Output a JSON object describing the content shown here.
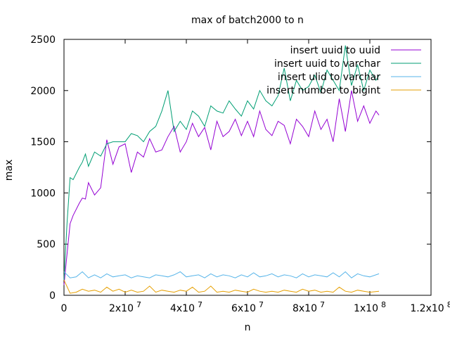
{
  "chart_data": {
    "type": "line",
    "title": "max of batch2000 to n",
    "xlabel": "n",
    "ylabel": "max",
    "xlim": [
      0,
      120000000
    ],
    "ylim": [
      0,
      2500
    ],
    "x_ticks": [
      {
        "value": 0,
        "label": "0"
      },
      {
        "value": 20000000,
        "label": "2x10",
        "exp": "7"
      },
      {
        "value": 40000000,
        "label": "4x10",
        "exp": "7"
      },
      {
        "value": 60000000,
        "label": "6x10",
        "exp": "7"
      },
      {
        "value": 80000000,
        "label": "8x10",
        "exp": "7"
      },
      {
        "value": 100000000,
        "label": "1x10",
        "exp": "8"
      },
      {
        "value": 120000000,
        "label": "1.2x10",
        "exp": "8"
      }
    ],
    "y_ticks": [
      {
        "value": 0,
        "label": "0"
      },
      {
        "value": 500,
        "label": "500"
      },
      {
        "value": 1000,
        "label": "1000"
      },
      {
        "value": 1500,
        "label": "1500"
      },
      {
        "value": 2000,
        "label": "2000"
      },
      {
        "value": 2500,
        "label": "2500"
      }
    ],
    "grid": false,
    "legend_position": "top-right",
    "series": [
      {
        "name": "insert uuid to uuid",
        "color": "#9400d3",
        "x": [
          0,
          1000000,
          2000000,
          3000000,
          5000000,
          6000000,
          7000000,
          8000000,
          10000000,
          12000000,
          14000000,
          16000000,
          18000000,
          20000000,
          22000000,
          24000000,
          26000000,
          28000000,
          30000000,
          32000000,
          34000000,
          36000000,
          38000000,
          40000000,
          42000000,
          44000000,
          46000000,
          48000000,
          50000000,
          52000000,
          54000000,
          56000000,
          58000000,
          60000000,
          62000000,
          64000000,
          66000000,
          68000000,
          70000000,
          72000000,
          74000000,
          76000000,
          78000000,
          80000000,
          82000000,
          84000000,
          86000000,
          88000000,
          90000000,
          92000000,
          94000000,
          96000000,
          98000000,
          100000000,
          102000000,
          103000000
        ],
        "values": [
          100,
          400,
          700,
          780,
          900,
          950,
          940,
          1100,
          980,
          1050,
          1520,
          1280,
          1450,
          1480,
          1200,
          1400,
          1350,
          1530,
          1400,
          1420,
          1550,
          1650,
          1400,
          1500,
          1680,
          1550,
          1640,
          1420,
          1700,
          1550,
          1600,
          1720,
          1560,
          1700,
          1550,
          1800,
          1620,
          1560,
          1700,
          1660,
          1480,
          1720,
          1650,
          1550,
          1800,
          1620,
          1720,
          1500,
          1920,
          1600,
          2000,
          1700,
          1850,
          1680,
          1800,
          1760
        ]
      },
      {
        "name": "insert uuid to varchar",
        "color": "#009e73",
        "x": [
          0,
          1000000,
          2000000,
          3000000,
          5000000,
          6000000,
          7000000,
          8000000,
          10000000,
          12000000,
          14000000,
          16000000,
          18000000,
          20000000,
          22000000,
          24000000,
          26000000,
          28000000,
          30000000,
          32000000,
          34000000,
          36000000,
          38000000,
          40000000,
          42000000,
          44000000,
          46000000,
          48000000,
          50000000,
          52000000,
          54000000,
          56000000,
          58000000,
          60000000,
          62000000,
          64000000,
          66000000,
          68000000,
          70000000,
          72000000,
          74000000,
          76000000,
          78000000,
          80000000,
          82000000,
          84000000,
          86000000,
          88000000,
          90000000,
          92000000,
          94000000,
          96000000,
          98000000,
          100000000,
          102000000,
          103000000
        ],
        "values": [
          150,
          700,
          1150,
          1130,
          1250,
          1300,
          1380,
          1260,
          1400,
          1360,
          1480,
          1500,
          1500,
          1500,
          1580,
          1560,
          1500,
          1600,
          1650,
          1800,
          2000,
          1600,
          1700,
          1620,
          1800,
          1750,
          1650,
          1850,
          1800,
          1780,
          1900,
          1820,
          1750,
          1900,
          1820,
          2000,
          1900,
          1850,
          1950,
          2220,
          1900,
          2100,
          2000,
          2040,
          2150,
          1980,
          2200,
          2100,
          2000,
          2440,
          2050,
          2250,
          2000,
          2200,
          2100,
          2150
        ]
      },
      {
        "name": "insert ulid to varchar",
        "color": "#56b4e9",
        "x": [
          0,
          2000000,
          4000000,
          6000000,
          8000000,
          10000000,
          12000000,
          14000000,
          16000000,
          18000000,
          20000000,
          22000000,
          24000000,
          26000000,
          28000000,
          30000000,
          32000000,
          34000000,
          36000000,
          38000000,
          40000000,
          42000000,
          44000000,
          46000000,
          48000000,
          50000000,
          52000000,
          54000000,
          56000000,
          58000000,
          60000000,
          62000000,
          64000000,
          66000000,
          68000000,
          70000000,
          72000000,
          74000000,
          76000000,
          78000000,
          80000000,
          82000000,
          84000000,
          86000000,
          88000000,
          90000000,
          92000000,
          94000000,
          96000000,
          98000000,
          100000000,
          103000000
        ],
        "values": [
          230,
          170,
          180,
          230,
          170,
          200,
          170,
          210,
          180,
          190,
          200,
          170,
          190,
          180,
          170,
          200,
          190,
          180,
          200,
          230,
          180,
          190,
          200,
          170,
          210,
          180,
          200,
          190,
          170,
          200,
          180,
          220,
          180,
          190,
          210,
          180,
          200,
          190,
          170,
          210,
          180,
          200,
          190,
          180,
          220,
          180,
          230,
          170,
          210,
          190,
          180,
          210
        ]
      },
      {
        "name": "insert number to bigint",
        "color": "#e69f00",
        "x": [
          0,
          2000000,
          4000000,
          6000000,
          8000000,
          10000000,
          12000000,
          14000000,
          16000000,
          18000000,
          20000000,
          22000000,
          24000000,
          26000000,
          28000000,
          30000000,
          32000000,
          34000000,
          36000000,
          38000000,
          40000000,
          42000000,
          44000000,
          46000000,
          48000000,
          50000000,
          52000000,
          54000000,
          56000000,
          58000000,
          60000000,
          62000000,
          64000000,
          66000000,
          68000000,
          70000000,
          72000000,
          74000000,
          76000000,
          78000000,
          80000000,
          82000000,
          84000000,
          86000000,
          88000000,
          90000000,
          92000000,
          94000000,
          96000000,
          98000000,
          100000000,
          103000000
        ],
        "values": [
          150,
          20,
          30,
          60,
          40,
          50,
          30,
          80,
          40,
          60,
          30,
          50,
          30,
          40,
          90,
          30,
          50,
          40,
          30,
          50,
          40,
          80,
          30,
          40,
          90,
          30,
          40,
          30,
          50,
          40,
          30,
          60,
          40,
          30,
          40,
          30,
          50,
          40,
          30,
          60,
          40,
          50,
          30,
          40,
          30,
          80,
          40,
          30,
          50,
          40,
          30,
          40
        ]
      }
    ]
  }
}
